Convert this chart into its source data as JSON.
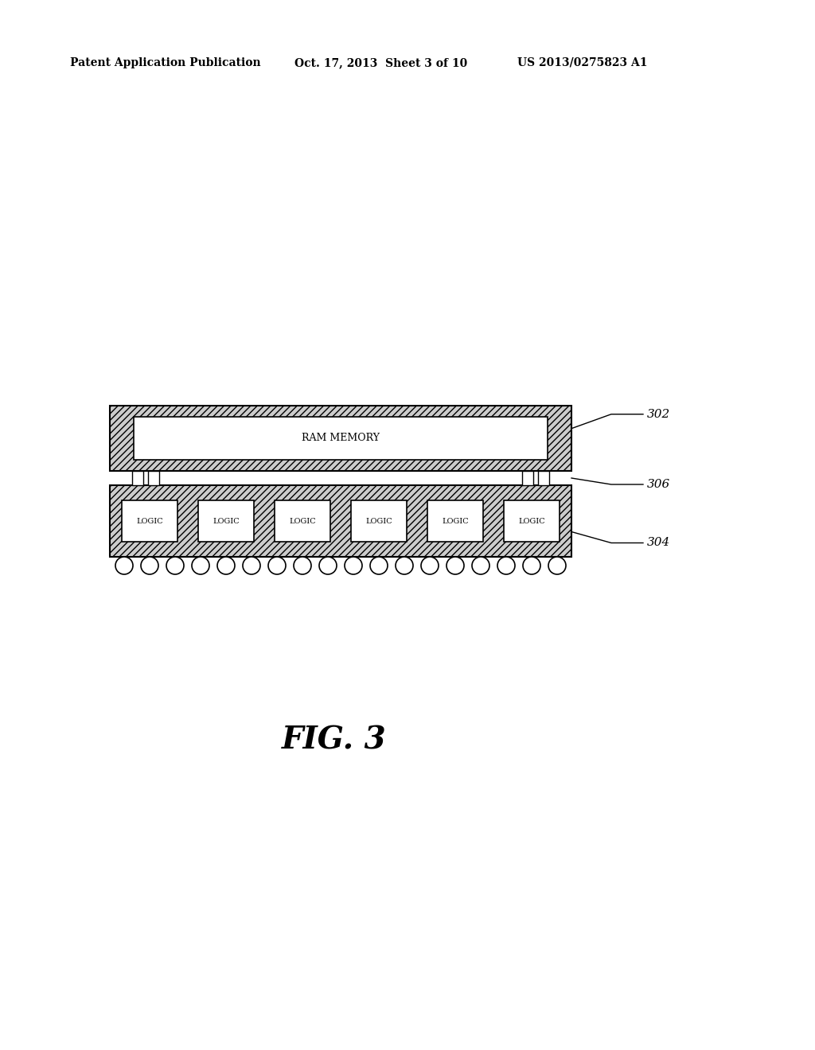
{
  "bg_color": "#ffffff",
  "header_left": "Patent Application Publication",
  "header_mid": "Oct. 17, 2013  Sheet 3 of 10",
  "header_right": "US 2013/0275823 A1",
  "fig_label": "FIG. 3",
  "label_302": "302",
  "label_304": "304",
  "label_306": "306",
  "ram_label": "RAM MEMORY",
  "logic_labels": [
    "LOGIC",
    "LOGIC",
    "LOGIC",
    "LOGIC",
    "LOGIC",
    "LOGIC"
  ],
  "line_color": "#000000",
  "hatch_color": "#aaaaaa",
  "box_color": "#ffffff",
  "num_solder_balls": 18,
  "n_logic": 6
}
